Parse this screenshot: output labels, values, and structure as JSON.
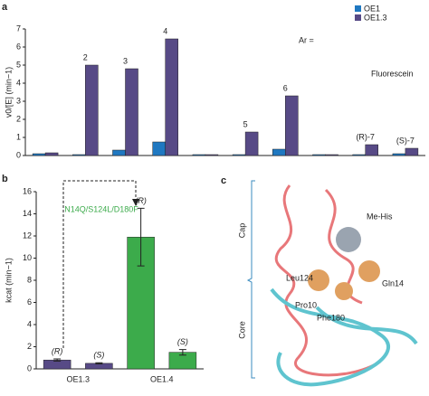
{
  "chart_data": [
    {
      "type": "bar",
      "panel": "a",
      "y_label": "v0/[E] (min−1)",
      "categories": [
        null,
        "2",
        "3",
        "4",
        null,
        "5",
        "6",
        null,
        "(R)-7",
        "(S)-7"
      ],
      "series": [
        {
          "name": "OE1",
          "color": "#1f78c1",
          "values": [
            0.1,
            0.05,
            0.3,
            0.75,
            0.05,
            0.05,
            0.35,
            0.05,
            0.05,
            0.1
          ]
        },
        {
          "name": "OE1.3",
          "color": "#574a86",
          "values": [
            0.15,
            5.0,
            4.8,
            6.45,
            0.05,
            1.3,
            3.3,
            0.05,
            0.6,
            0.4
          ]
        }
      ],
      "ylim": [
        0,
        7
      ],
      "yticks": [
        0,
        1,
        2,
        3,
        4,
        5,
        6,
        7
      ],
      "annotations": [
        "Ar =",
        "Fluorescein"
      ]
    },
    {
      "type": "bar",
      "panel": "b",
      "y_label": "kcat (min−1)",
      "categories": [
        "(R)",
        "(S)",
        "(R)",
        "(S)"
      ],
      "series": [
        {
          "name": "OE1.3",
          "color": "#574a86",
          "values": [
            0.8,
            0.5,
            null,
            null
          ],
          "errors": [
            0.1,
            0.05,
            null,
            null
          ]
        },
        {
          "name": "OE1.4",
          "color": "#3cab4b",
          "values": [
            null,
            null,
            11.9,
            1.5
          ],
          "errors": [
            null,
            null,
            2.6,
            0.25
          ]
        }
      ],
      "ylim": [
        0,
        16
      ],
      "yticks": [
        0,
        2,
        4,
        6,
        8,
        10,
        12,
        14,
        16
      ],
      "annotation": "N14Q/S124L/D180F"
    }
  ],
  "panel_c": {
    "label": "c",
    "regions": [
      "Cap",
      "Core"
    ],
    "residues": [
      "Me-His",
      "Leu124",
      "Gln14",
      "Pro10",
      "Phe180"
    ]
  }
}
